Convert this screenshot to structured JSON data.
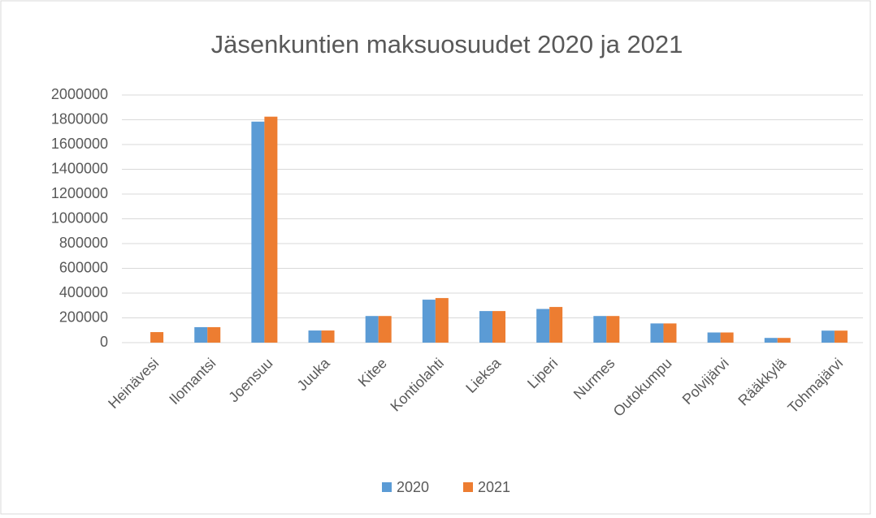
{
  "chart_data": {
    "type": "bar",
    "title": "Jäsenkuntien maksuosuudet 2020 ja 2021",
    "categories": [
      "Heinävesi",
      "Ilomantsi",
      "Joensuu",
      "Juuka",
      "Kitee",
      "Kontiolahti",
      "Lieksa",
      "Liperi",
      "Nurmes",
      "Outokumpu",
      "Polvijärvi",
      "Rääkkylä",
      "Tohmajärvi"
    ],
    "series": [
      {
        "name": "2020",
        "color": "#5b9bd5",
        "values": [
          null,
          125000,
          1785000,
          98000,
          215000,
          347000,
          255000,
          272000,
          215000,
          155000,
          82000,
          38000,
          97000
        ]
      },
      {
        "name": "2021",
        "color": "#ed7d31",
        "values": [
          85000,
          125000,
          1825000,
          98000,
          215000,
          360000,
          255000,
          288000,
          215000,
          155000,
          82000,
          38000,
          97000
        ]
      }
    ],
    "ylim": [
      0,
      2000000
    ],
    "yticks": [
      0,
      200000,
      400000,
      600000,
      800000,
      1000000,
      1200000,
      1400000,
      1600000,
      1800000,
      2000000
    ],
    "grid": true,
    "legend": "bottom"
  }
}
